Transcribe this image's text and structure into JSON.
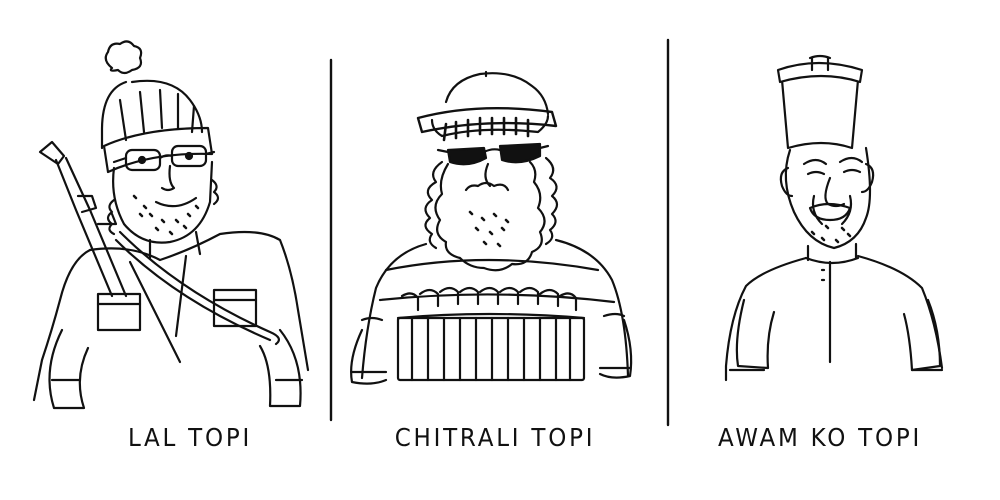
{
  "panels": [
    {
      "caption": "LAL TOPI",
      "figure": "man-with-pompom-hat-and-rifle"
    },
    {
      "caption": "CHITRALI TOPI",
      "figure": "bearded-man-with-chitrali-cap-and-sunglasses"
    },
    {
      "caption": "AWAM KO TOPI",
      "figure": "man-with-tall-cap"
    }
  ],
  "colors": {
    "ink": "#111111",
    "paper": "#ffffff"
  }
}
